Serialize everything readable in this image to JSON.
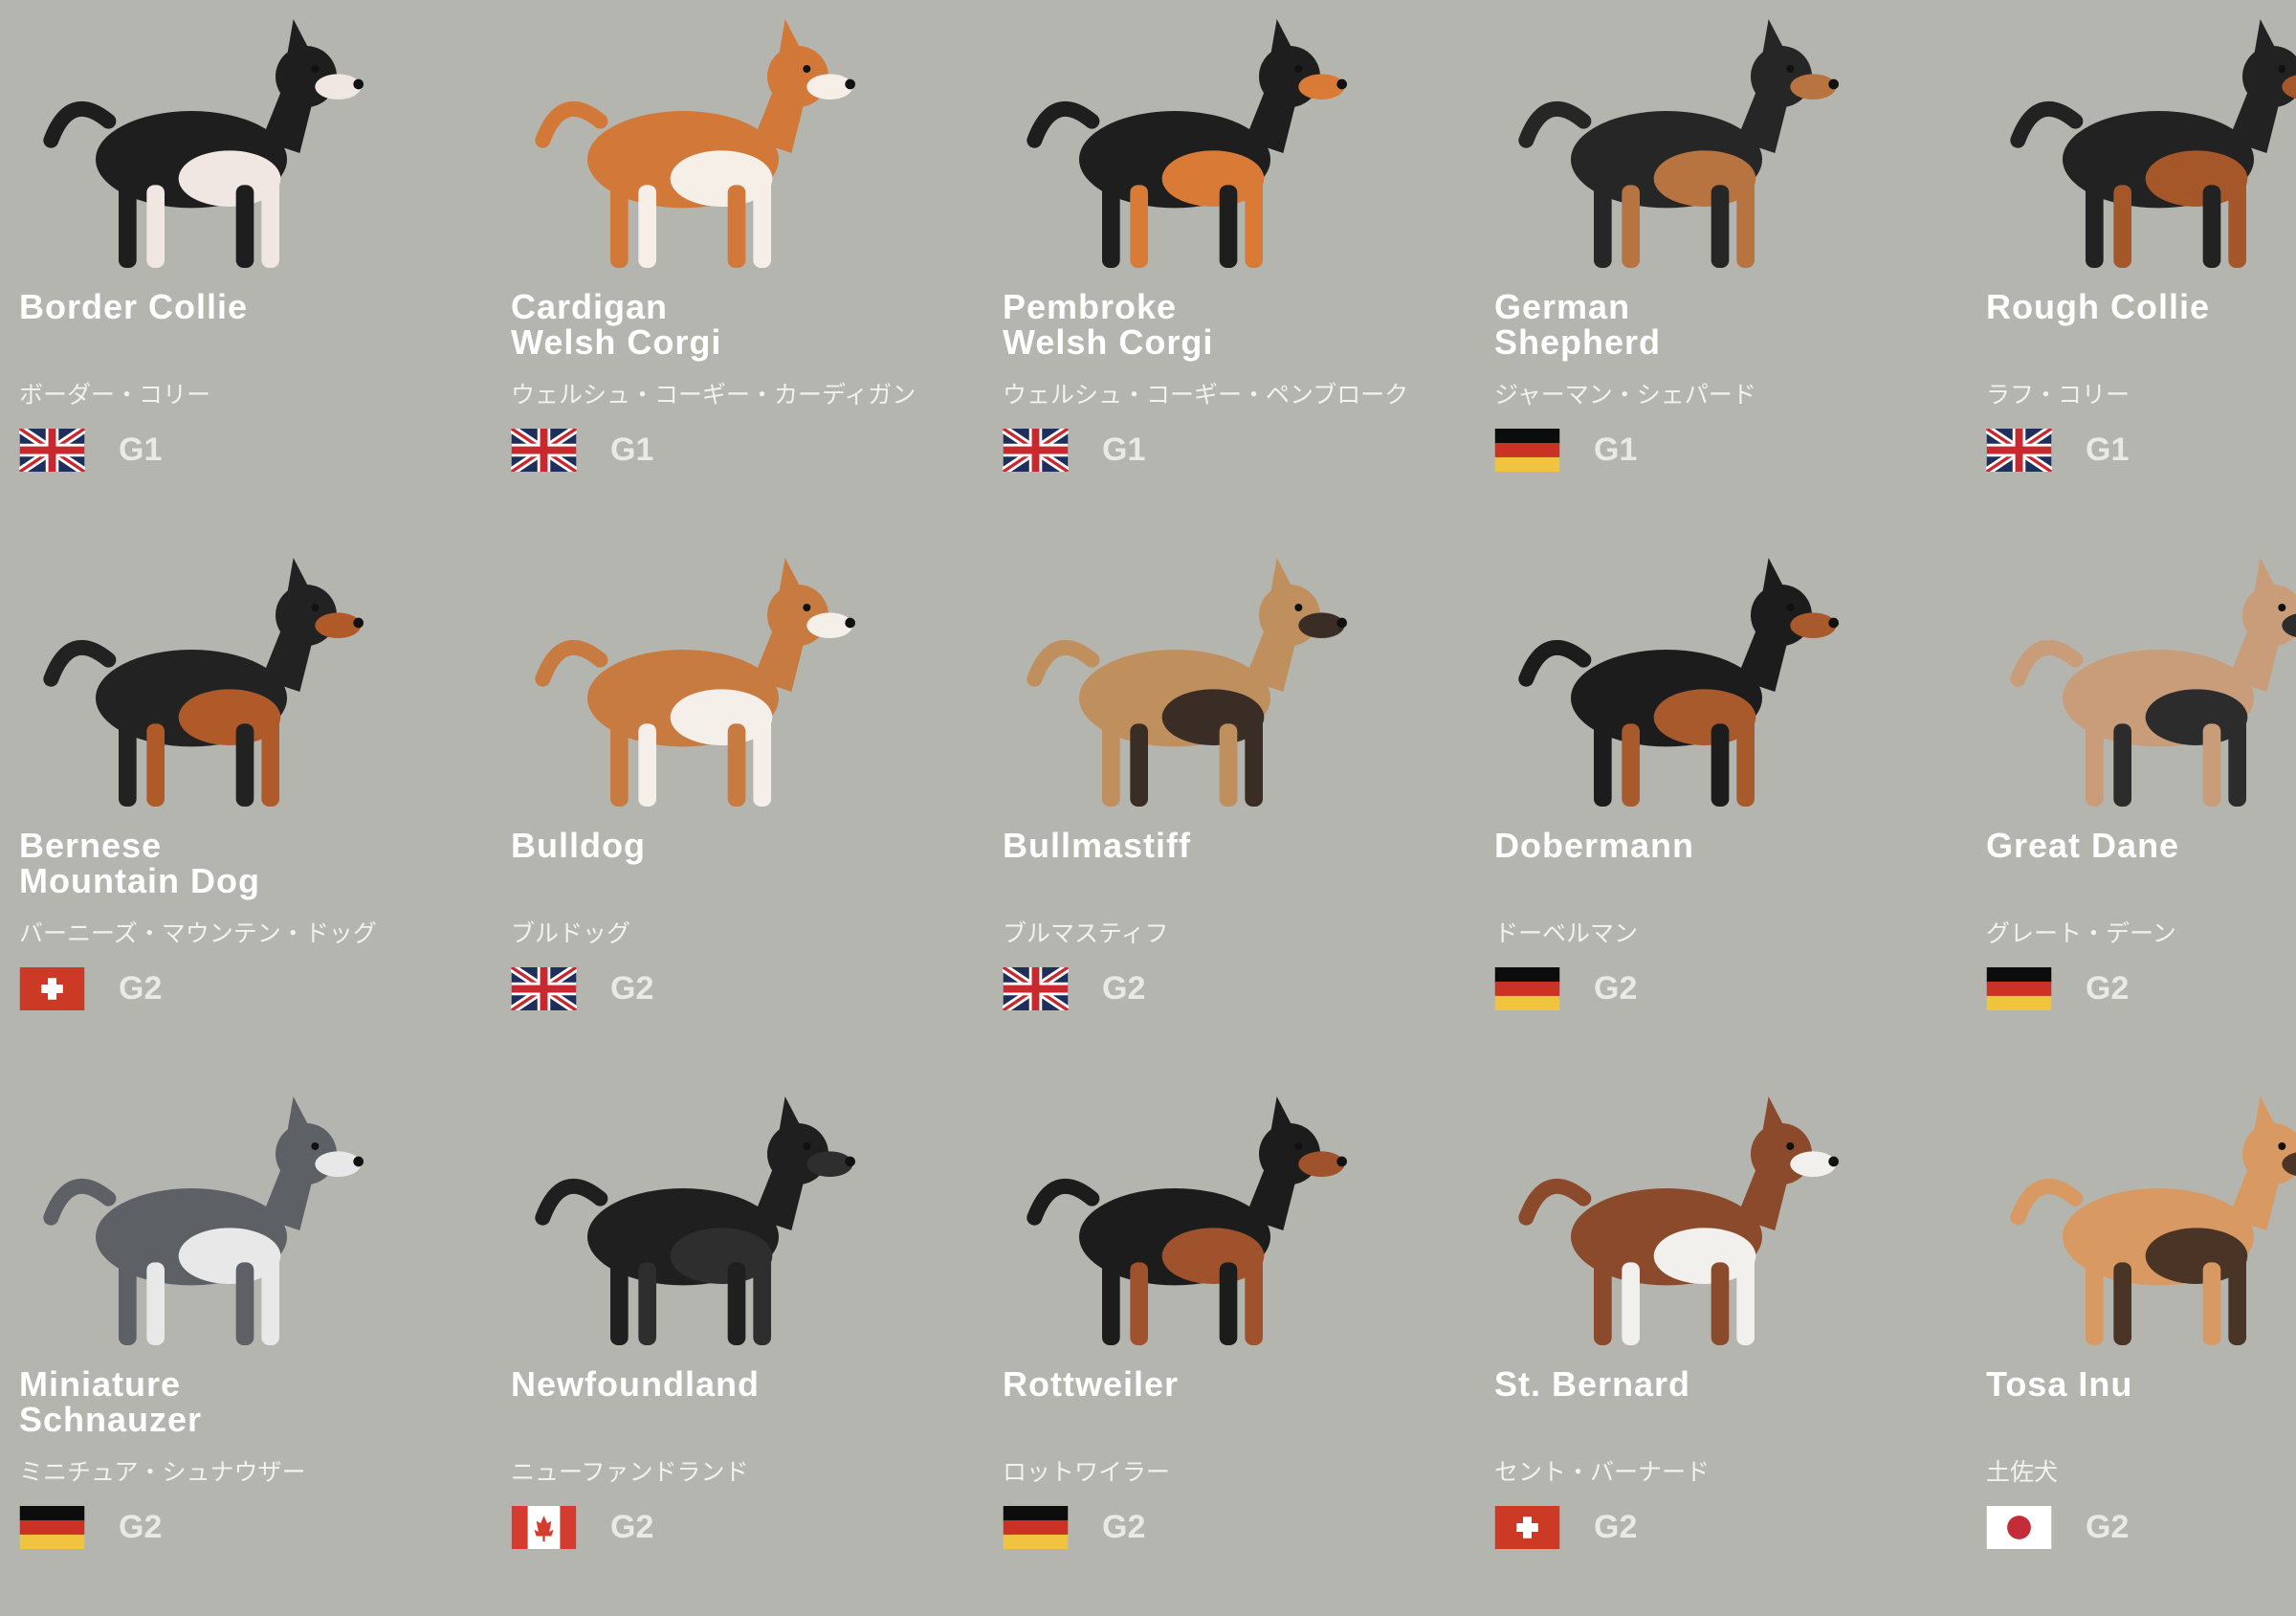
{
  "background_color": "#b4b5ae",
  "breeds": [
    {
      "name": "Border Collie",
      "jp": "ボーダー・コリー",
      "flag": "uk-flag",
      "group": "G1",
      "colors": [
        "#1e1e1e",
        "#f0e6e2"
      ]
    },
    {
      "name": "Cardigan\nWelsh Corgi",
      "jp": "ウェルシュ・コーギー・カーディガン",
      "flag": "uk-flag",
      "group": "G1",
      "colors": [
        "#d2793a",
        "#f6efe8"
      ]
    },
    {
      "name": "Pembroke\nWelsh Corgi",
      "jp": "ウェルシュ・コーギー・ペンブローク",
      "flag": "uk-flag",
      "group": "G1",
      "colors": [
        "#1e1e1e",
        "#d97a36"
      ]
    },
    {
      "name": "German\nShepherd",
      "jp": "ジャーマン・シェパード",
      "flag": "de-flag",
      "group": "G1",
      "colors": [
        "#262626",
        "#b87440"
      ]
    },
    {
      "name": "Rough Collie",
      "jp": "ラフ・コリー",
      "flag": "uk-flag",
      "group": "G1",
      "colors": [
        "#222222",
        "#a5572a"
      ]
    },
    {
      "name": "Bernese\nMountain Dog",
      "jp": "バーニーズ・マウンテン・ドッグ",
      "flag": "ch-flag",
      "group": "G2",
      "colors": [
        "#222222",
        "#b05a2a"
      ]
    },
    {
      "name": "Bulldog",
      "jp": "ブルドッグ",
      "flag": "uk-flag",
      "group": "G2",
      "colors": [
        "#c77b40",
        "#f4efe9"
      ]
    },
    {
      "name": "Bullmastiff",
      "jp": "ブルマスティフ",
      "flag": "uk-flag",
      "group": "G2",
      "colors": [
        "#c08f5e",
        "#3a2d26"
      ]
    },
    {
      "name": "Dobermann",
      "jp": "ドーベルマン",
      "flag": "de-flag",
      "group": "G2",
      "colors": [
        "#1c1c1c",
        "#a85a2c"
      ]
    },
    {
      "name": "Great Dane",
      "jp": "グレート・デーン",
      "flag": "de-flag",
      "group": "G2",
      "colors": [
        "#c99c7a",
        "#2c2c2c"
      ]
    },
    {
      "name": "Miniature\nSchnauzer",
      "jp": "ミニチュア・シュナウザー",
      "flag": "de-flag",
      "group": "G2",
      "colors": [
        "#5d6064",
        "#e8e8e8"
      ]
    },
    {
      "name": "Newfoundland",
      "jp": "ニューファンドランド",
      "flag": "ca-flag",
      "group": "G2",
      "colors": [
        "#1f1f1f",
        "#2e2e2e"
      ]
    },
    {
      "name": "Rottweiler",
      "jp": "ロットワイラー",
      "flag": "de-flag",
      "group": "G2",
      "colors": [
        "#1c1c1c",
        "#a0522d"
      ]
    },
    {
      "name": "St. Bernard",
      "jp": "セント・バーナード",
      "flag": "ch-flag",
      "group": "G2",
      "colors": [
        "#8b4a2b",
        "#f2f0ec"
      ]
    },
    {
      "name": "Tosa Inu",
      "jp": "土佐犬",
      "flag": "jp-flag",
      "group": "G2",
      "colors": [
        "#d89a62",
        "#4a3426"
      ]
    }
  ]
}
